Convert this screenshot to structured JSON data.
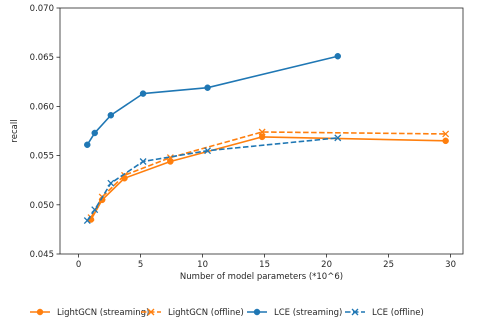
{
  "chart_data": {
    "type": "line",
    "xlabel": "Number of model parameters (*10^6)",
    "ylabel": "recall",
    "xlim": [
      -1.5,
      31
    ],
    "ylim": [
      0.045,
      0.07
    ],
    "xticks": [
      0,
      5,
      10,
      15,
      20,
      25,
      30
    ],
    "yticks": [
      0.045,
      0.05,
      0.055,
      0.06,
      0.065,
      0.07
    ],
    "xtick_labels": [
      "0",
      "5",
      "10",
      "15",
      "20",
      "25",
      "30"
    ],
    "ytick_labels": [
      "0.045",
      "0.050",
      "0.055",
      "0.060",
      "0.065",
      "0.070"
    ],
    "grid": false,
    "legend_position": "bottom",
    "series": [
      {
        "name": "LightGCN (streaming)",
        "color": "#ff7f0e",
        "line_style": "solid",
        "marker": "circle",
        "x": [
          1.0,
          1.9,
          3.7,
          7.4,
          14.8,
          29.6
        ],
        "y": [
          0.0485,
          0.0505,
          0.0527,
          0.0544,
          0.0569,
          0.0565
        ]
      },
      {
        "name": "LightGCN (offline)",
        "color": "#ff7f0e",
        "line_style": "dashed",
        "marker": "x",
        "x": [
          1.0,
          1.9,
          3.7,
          7.4,
          14.8,
          29.6
        ],
        "y": [
          0.0487,
          0.0508,
          0.053,
          0.0548,
          0.0574,
          0.0572
        ]
      },
      {
        "name": "LCE (streaming)",
        "color": "#1f77b4",
        "line_style": "solid",
        "marker": "circle",
        "x": [
          0.7,
          1.3,
          2.6,
          5.2,
          10.4,
          20.9
        ],
        "y": [
          0.0561,
          0.0573,
          0.0591,
          0.0613,
          0.0619,
          0.0651
        ]
      },
      {
        "name": "LCE (offline)",
        "color": "#1f77b4",
        "line_style": "dashed",
        "marker": "x",
        "x": [
          0.7,
          1.3,
          2.6,
          5.2,
          10.4,
          20.9
        ],
        "y": [
          0.0484,
          0.0495,
          0.0522,
          0.0544,
          0.0555,
          0.0568
        ]
      }
    ]
  }
}
